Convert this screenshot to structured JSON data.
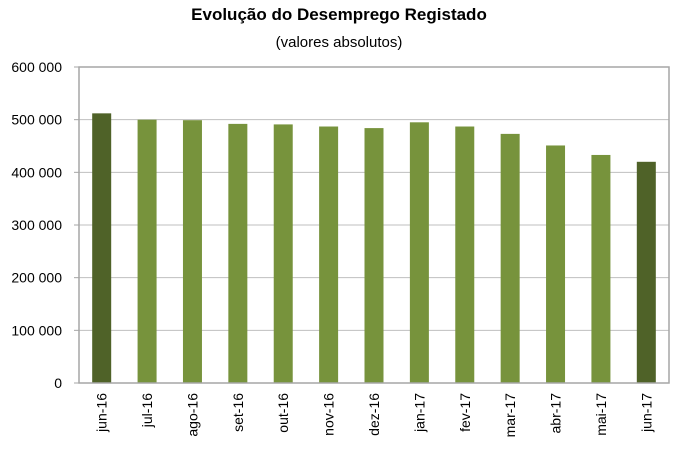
{
  "chart_data": {
    "type": "bar",
    "title": "Evolução do Desemprego Registado",
    "subtitle": "(valores absolutos)",
    "xlabel": "",
    "ylabel": "",
    "categories": [
      "jun-16",
      "jul-16",
      "ago-16",
      "set-16",
      "out-16",
      "nov-16",
      "dez-16",
      "jan-17",
      "fev-17",
      "mar-17",
      "abr-17",
      "mai-17",
      "jun-17"
    ],
    "values": [
      512000,
      500000,
      499000,
      492000,
      491000,
      487000,
      484000,
      495000,
      487000,
      473000,
      451000,
      433000,
      420000
    ],
    "ylim": [
      0,
      600000
    ],
    "yticks": [
      {
        "value": 0,
        "label": "0"
      },
      {
        "value": 100000,
        "label": "100 000"
      },
      {
        "value": 200000,
        "label": "200 000"
      },
      {
        "value": 300000,
        "label": "300 000"
      },
      {
        "value": 400000,
        "label": "400 000"
      },
      {
        "value": 500000,
        "label": "500 000"
      },
      {
        "value": 600000,
        "label": "600 000"
      }
    ],
    "grid": true,
    "legend": "none",
    "colors": {
      "bar": "#77933c",
      "highlight": "#4f6228",
      "grid": "#bfbfbf",
      "frame": "#a6a6a6"
    },
    "highlighted": [
      "jun-16",
      "jun-17"
    ]
  }
}
